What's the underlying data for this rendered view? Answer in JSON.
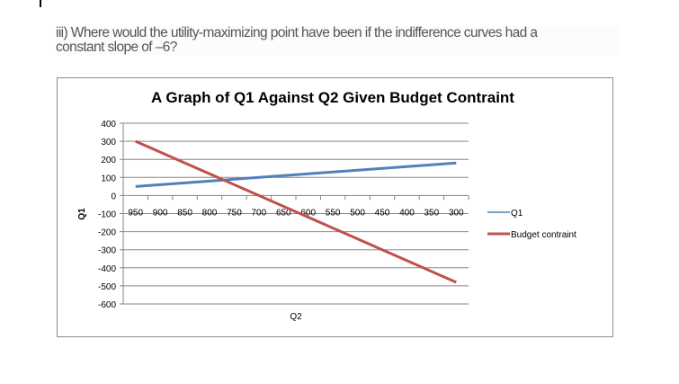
{
  "question": {
    "line1": "iii) Where would the utility-maximizing point have been if the indifference curves had a",
    "line2": "constant slope of –6?"
  },
  "chart_data": {
    "type": "line",
    "title": "A Graph of Q1 Against Q2 Given Budget Contraint",
    "xlabel": "Q2",
    "ylabel": "Q1",
    "categories": [
      "950",
      "900",
      "850",
      "800",
      "750",
      "700",
      "650",
      "600",
      "550",
      "500",
      "450",
      "400",
      "350",
      "300"
    ],
    "ylim": [
      -600,
      400
    ],
    "yticks": [
      400,
      300,
      200,
      100,
      0,
      -100,
      -200,
      -300,
      -400,
      -500,
      -600
    ],
    "grid": true,
    "legend_position": "right",
    "series": [
      {
        "name": "Q1",
        "color": "#4f81bd",
        "values": [
          50,
          60,
          70,
          80,
          90,
          100,
          110,
          120,
          130,
          140,
          150,
          160,
          170,
          180
        ]
      },
      {
        "name": "Budget contraint",
        "color": "#c0504d",
        "values": [
          300,
          240,
          180,
          120,
          60,
          0,
          -60,
          -120,
          -180,
          -240,
          -300,
          -360,
          -420,
          -480
        ]
      }
    ]
  }
}
